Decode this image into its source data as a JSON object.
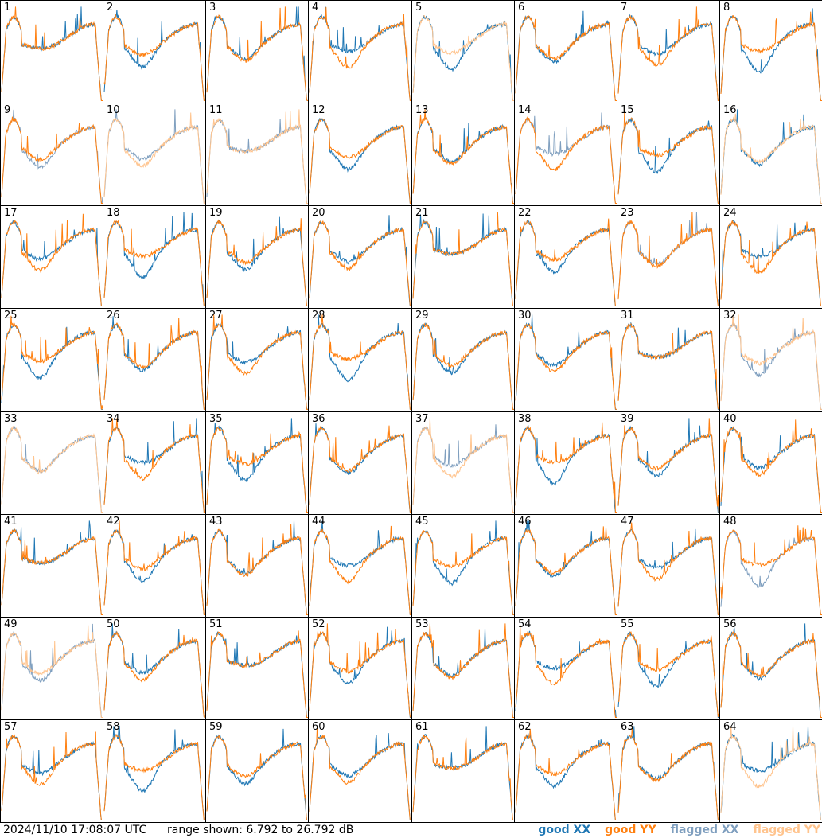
{
  "timestamp": "2024/11/10 17:08:07 UTC",
  "range_text": "range shown: 6.792 to 26.792 dB",
  "colors": {
    "good_xx": "#1f77b4",
    "good_yy": "#ff7f0e",
    "flagged_xx": "#7f9fbf",
    "flagged_yy": "#ffc48e"
  },
  "legend": [
    {
      "label": "good XX",
      "color": "#1f77b4"
    },
    {
      "label": "good YY",
      "color": "#ff7f0e"
    },
    {
      "label": "flagged XX",
      "color": "#7f9fbf"
    },
    {
      "label": "flagged YY",
      "color": "#ffc48e"
    }
  ],
  "chart_data": {
    "type": "line",
    "ylim": [
      6.792,
      26.792
    ],
    "yunit": "dB",
    "panels": [
      {
        "label": "1",
        "xx": "good",
        "yy": "good"
      },
      {
        "label": "2",
        "xx": "good",
        "yy": "good"
      },
      {
        "label": "3",
        "xx": "good",
        "yy": "good"
      },
      {
        "label": "4",
        "xx": "good",
        "yy": "good"
      },
      {
        "label": "5",
        "xx": "good",
        "yy": "flagged"
      },
      {
        "label": "6",
        "xx": "good",
        "yy": "good"
      },
      {
        "label": "7",
        "xx": "good",
        "yy": "good"
      },
      {
        "label": "8",
        "xx": "good",
        "yy": "good"
      },
      {
        "label": "9",
        "xx": "flagged",
        "yy": "good"
      },
      {
        "label": "10",
        "xx": "flagged",
        "yy": "flagged"
      },
      {
        "label": "11",
        "xx": "flagged",
        "yy": "flagged"
      },
      {
        "label": "12",
        "xx": "good",
        "yy": "good"
      },
      {
        "label": "13",
        "xx": "good",
        "yy": "good"
      },
      {
        "label": "14",
        "xx": "flagged",
        "yy": "good"
      },
      {
        "label": "15",
        "xx": "good",
        "yy": "good"
      },
      {
        "label": "16",
        "xx": "good",
        "yy": "flagged"
      },
      {
        "label": "17",
        "xx": "good",
        "yy": "good"
      },
      {
        "label": "18",
        "xx": "good",
        "yy": "good"
      },
      {
        "label": "19",
        "xx": "good",
        "yy": "good"
      },
      {
        "label": "20",
        "xx": "good",
        "yy": "good"
      },
      {
        "label": "21",
        "xx": "good",
        "yy": "good"
      },
      {
        "label": "22",
        "xx": "good",
        "yy": "good"
      },
      {
        "label": "23",
        "xx": "flagged",
        "yy": "good"
      },
      {
        "label": "24",
        "xx": "good",
        "yy": "good"
      },
      {
        "label": "25",
        "xx": "good",
        "yy": "good"
      },
      {
        "label": "26",
        "xx": "good",
        "yy": "good"
      },
      {
        "label": "27",
        "xx": "good",
        "yy": "good"
      },
      {
        "label": "28",
        "xx": "good",
        "yy": "good"
      },
      {
        "label": "29",
        "xx": "good",
        "yy": "good"
      },
      {
        "label": "30",
        "xx": "good",
        "yy": "good"
      },
      {
        "label": "31",
        "xx": "good",
        "yy": "good"
      },
      {
        "label": "32",
        "xx": "flagged",
        "yy": "flagged"
      },
      {
        "label": "33",
        "xx": "flagged",
        "yy": "flagged"
      },
      {
        "label": "34",
        "xx": "good",
        "yy": "good"
      },
      {
        "label": "35",
        "xx": "good",
        "yy": "good"
      },
      {
        "label": "36",
        "xx": "good",
        "yy": "good"
      },
      {
        "label": "37",
        "xx": "flagged",
        "yy": "flagged"
      },
      {
        "label": "38",
        "xx": "good",
        "yy": "good"
      },
      {
        "label": "39",
        "xx": "good",
        "yy": "good"
      },
      {
        "label": "40",
        "xx": "good",
        "yy": "good"
      },
      {
        "label": "41",
        "xx": "good",
        "yy": "good"
      },
      {
        "label": "42",
        "xx": "good",
        "yy": "good"
      },
      {
        "label": "43",
        "xx": "good",
        "yy": "good"
      },
      {
        "label": "44",
        "xx": "good",
        "yy": "good"
      },
      {
        "label": "45",
        "xx": "good",
        "yy": "good"
      },
      {
        "label": "46",
        "xx": "good",
        "yy": "good"
      },
      {
        "label": "47",
        "xx": "good",
        "yy": "good"
      },
      {
        "label": "48",
        "xx": "flagged",
        "yy": "good"
      },
      {
        "label": "49",
        "xx": "flagged",
        "yy": "flagged"
      },
      {
        "label": "50",
        "xx": "good",
        "yy": "good"
      },
      {
        "label": "51",
        "xx": "good",
        "yy": "good"
      },
      {
        "label": "52",
        "xx": "good",
        "yy": "good"
      },
      {
        "label": "53",
        "xx": "good",
        "yy": "good"
      },
      {
        "label": "54",
        "xx": "good",
        "yy": "good"
      },
      {
        "label": "55",
        "xx": "good",
        "yy": "good"
      },
      {
        "label": "56",
        "xx": "good",
        "yy": "good"
      },
      {
        "label": "57",
        "xx": "good",
        "yy": "good"
      },
      {
        "label": "58",
        "xx": "good",
        "yy": "good"
      },
      {
        "label": "59",
        "xx": "good",
        "yy": "good"
      },
      {
        "label": "60",
        "xx": "good",
        "yy": "good"
      },
      {
        "label": "61",
        "xx": "good",
        "yy": "good"
      },
      {
        "label": "62",
        "xx": "good",
        "yy": "good"
      },
      {
        "label": "63",
        "xx": "good",
        "yy": "good"
      },
      {
        "label": "64",
        "xx": "good",
        "yy": "flagged"
      }
    ]
  }
}
